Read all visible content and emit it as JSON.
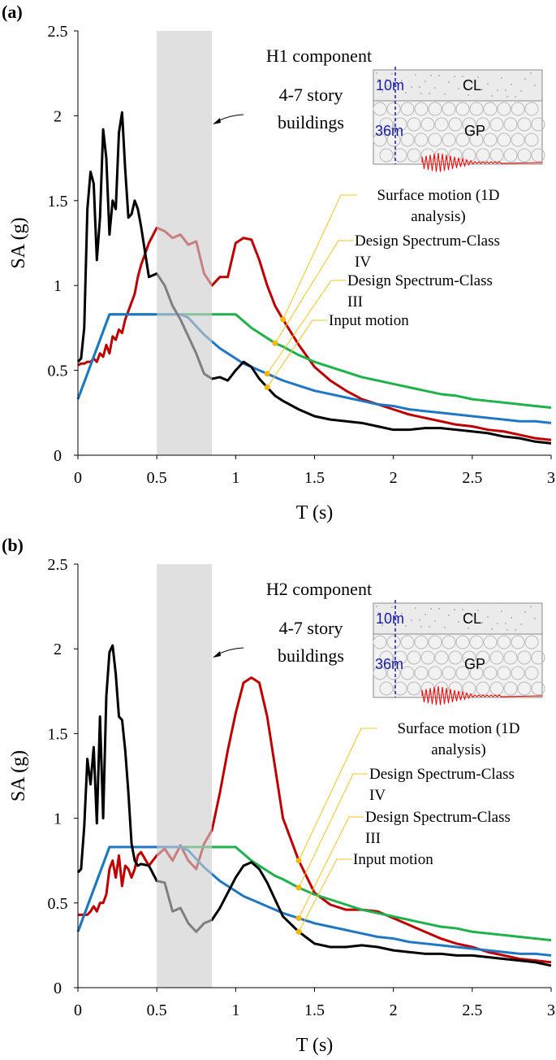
{
  "chart_data": [
    {
      "type": "line",
      "panel_label": "(a)",
      "title": "H1 component",
      "annotation": "4-7 story buildings",
      "inset_labels": [
        "10m",
        "CL",
        "36m",
        "GP"
      ],
      "xlabel": "T (s)",
      "ylabel": "SA (g)",
      "highlight": [
        0.5,
        0.85
      ],
      "xlim": [
        0,
        3
      ],
      "xticks": [
        0,
        0.5,
        1,
        1.5,
        2,
        2.5,
        3
      ],
      "ylim": [
        0,
        2.5
      ],
      "yticks": [
        0,
        0.5,
        1,
        1.5,
        2,
        2.5
      ],
      "x": [
        0,
        0.02,
        0.04,
        0.06,
        0.08,
        0.1,
        0.12,
        0.14,
        0.16,
        0.18,
        0.2,
        0.22,
        0.24,
        0.26,
        0.28,
        0.3,
        0.32,
        0.34,
        0.36,
        0.38,
        0.4,
        0.45,
        0.5,
        0.55,
        0.6,
        0.65,
        0.7,
        0.75,
        0.8,
        0.85,
        0.9,
        0.95,
        1.0,
        1.05,
        1.1,
        1.15,
        1.2,
        1.25,
        1.3,
        1.4,
        1.5,
        1.6,
        1.7,
        1.8,
        1.9,
        2.0,
        2.1,
        2.2,
        2.3,
        2.4,
        2.5,
        2.6,
        2.7,
        2.8,
        2.9,
        3.0
      ],
      "series": [
        {
          "name": "Surface motion (1D analysis)",
          "color": "#c00000",
          "values": [
            0.53,
            0.54,
            0.54,
            0.55,
            0.55,
            0.57,
            0.55,
            0.6,
            0.58,
            0.65,
            0.6,
            0.7,
            0.68,
            0.74,
            0.72,
            0.8,
            0.85,
            0.9,
            0.95,
            1.05,
            1.12,
            1.25,
            1.34,
            1.32,
            1.28,
            1.3,
            1.24,
            1.26,
            1.07,
            1.0,
            1.05,
            1.05,
            1.25,
            1.28,
            1.27,
            1.15,
            1.0,
            0.88,
            0.8,
            0.65,
            0.52,
            0.44,
            0.38,
            0.33,
            0.3,
            0.27,
            0.24,
            0.22,
            0.2,
            0.18,
            0.17,
            0.15,
            0.14,
            0.12,
            0.1,
            0.09
          ]
        },
        {
          "name": "Design Spectrum-Class IV",
          "color": "#1fb24a",
          "values": [
            0.33,
            0.38,
            0.43,
            0.48,
            0.53,
            0.58,
            0.63,
            0.68,
            0.73,
            0.78,
            0.83,
            0.83,
            0.83,
            0.83,
            0.83,
            0.83,
            0.83,
            0.83,
            0.83,
            0.83,
            0.83,
            0.83,
            0.83,
            0.83,
            0.83,
            0.83,
            0.83,
            0.83,
            0.83,
            0.83,
            0.83,
            0.83,
            0.83,
            0.79,
            0.75,
            0.72,
            0.69,
            0.66,
            0.64,
            0.59,
            0.55,
            0.52,
            0.49,
            0.46,
            0.44,
            0.42,
            0.4,
            0.38,
            0.36,
            0.35,
            0.33,
            0.32,
            0.31,
            0.3,
            0.29,
            0.28
          ]
        },
        {
          "name": "Design Spectrum-Class III",
          "color": "#1f77c4",
          "values": [
            0.33,
            0.38,
            0.43,
            0.48,
            0.53,
            0.58,
            0.63,
            0.68,
            0.73,
            0.78,
            0.83,
            0.83,
            0.83,
            0.83,
            0.83,
            0.83,
            0.83,
            0.83,
            0.83,
            0.83,
            0.83,
            0.83,
            0.83,
            0.83,
            0.83,
            0.83,
            0.81,
            0.76,
            0.71,
            0.67,
            0.63,
            0.6,
            0.57,
            0.54,
            0.52,
            0.5,
            0.48,
            0.46,
            0.44,
            0.41,
            0.38,
            0.36,
            0.34,
            0.32,
            0.3,
            0.29,
            0.27,
            0.26,
            0.25,
            0.24,
            0.23,
            0.22,
            0.21,
            0.2,
            0.2,
            0.19
          ]
        },
        {
          "name": "Input motion",
          "color": "#000000",
          "values": [
            0.55,
            0.57,
            0.75,
            1.45,
            1.67,
            1.6,
            1.15,
            1.4,
            1.92,
            1.75,
            1.3,
            1.5,
            1.45,
            1.9,
            2.02,
            1.68,
            1.4,
            1.42,
            1.5,
            1.45,
            1.35,
            1.05,
            1.07,
            1.0,
            0.88,
            0.8,
            0.7,
            0.6,
            0.48,
            0.45,
            0.46,
            0.44,
            0.5,
            0.55,
            0.52,
            0.45,
            0.4,
            0.35,
            0.32,
            0.27,
            0.23,
            0.21,
            0.2,
            0.19,
            0.17,
            0.15,
            0.15,
            0.16,
            0.16,
            0.15,
            0.14,
            0.13,
            0.11,
            0.1,
            0.08,
            0.07
          ]
        }
      ]
    },
    {
      "type": "line",
      "panel_label": "(b)",
      "title": "H2 component",
      "annotation": "4-7 story buildings",
      "inset_labels": [
        "10m",
        "CL",
        "36m",
        "GP"
      ],
      "xlabel": "T (s)",
      "ylabel": "SA (g)",
      "highlight": [
        0.5,
        0.85
      ],
      "xlim": [
        0,
        3
      ],
      "xticks": [
        0,
        0.5,
        1,
        1.5,
        2,
        2.5,
        3
      ],
      "ylim": [
        0,
        2.5
      ],
      "yticks": [
        0,
        0.5,
        1,
        1.5,
        2,
        2.5
      ],
      "x": [
        0,
        0.02,
        0.04,
        0.06,
        0.08,
        0.1,
        0.12,
        0.14,
        0.16,
        0.18,
        0.2,
        0.22,
        0.24,
        0.26,
        0.28,
        0.3,
        0.32,
        0.34,
        0.36,
        0.38,
        0.4,
        0.45,
        0.5,
        0.55,
        0.6,
        0.65,
        0.7,
        0.75,
        0.8,
        0.85,
        0.9,
        0.95,
        1.0,
        1.05,
        1.1,
        1.15,
        1.2,
        1.25,
        1.3,
        1.4,
        1.5,
        1.6,
        1.7,
        1.8,
        1.9,
        2.0,
        2.1,
        2.2,
        2.3,
        2.4,
        2.5,
        2.6,
        2.7,
        2.8,
        2.9,
        3.0
      ],
      "series": [
        {
          "name": "Surface motion (1D analysis)",
          "color": "#c00000",
          "values": [
            0.43,
            0.43,
            0.43,
            0.43,
            0.45,
            0.48,
            0.45,
            0.5,
            0.5,
            0.55,
            0.7,
            0.75,
            0.65,
            0.78,
            0.6,
            0.72,
            0.7,
            0.65,
            0.7,
            0.78,
            0.8,
            0.72,
            0.78,
            0.82,
            0.75,
            0.84,
            0.75,
            0.7,
            0.85,
            0.93,
            1.15,
            1.4,
            1.62,
            1.8,
            1.83,
            1.8,
            1.6,
            1.3,
            1.0,
            0.75,
            0.56,
            0.49,
            0.46,
            0.46,
            0.45,
            0.41,
            0.37,
            0.33,
            0.29,
            0.26,
            0.24,
            0.21,
            0.19,
            0.17,
            0.16,
            0.15
          ]
        },
        {
          "name": "Design Spectrum-Class IV",
          "color": "#1fb24a",
          "values": [
            0.33,
            0.38,
            0.43,
            0.48,
            0.53,
            0.58,
            0.63,
            0.68,
            0.73,
            0.78,
            0.83,
            0.83,
            0.83,
            0.83,
            0.83,
            0.83,
            0.83,
            0.83,
            0.83,
            0.83,
            0.83,
            0.83,
            0.83,
            0.83,
            0.83,
            0.83,
            0.83,
            0.83,
            0.83,
            0.83,
            0.83,
            0.83,
            0.83,
            0.79,
            0.75,
            0.72,
            0.69,
            0.66,
            0.64,
            0.59,
            0.55,
            0.52,
            0.49,
            0.46,
            0.44,
            0.42,
            0.4,
            0.38,
            0.36,
            0.35,
            0.33,
            0.32,
            0.31,
            0.3,
            0.29,
            0.28
          ]
        },
        {
          "name": "Design Spectrum-Class III",
          "color": "#1f77c4",
          "values": [
            0.33,
            0.38,
            0.43,
            0.48,
            0.53,
            0.58,
            0.63,
            0.68,
            0.73,
            0.78,
            0.83,
            0.83,
            0.83,
            0.83,
            0.83,
            0.83,
            0.83,
            0.83,
            0.83,
            0.83,
            0.83,
            0.83,
            0.83,
            0.83,
            0.83,
            0.83,
            0.81,
            0.76,
            0.71,
            0.67,
            0.63,
            0.6,
            0.57,
            0.54,
            0.52,
            0.5,
            0.48,
            0.46,
            0.44,
            0.41,
            0.38,
            0.36,
            0.34,
            0.32,
            0.3,
            0.29,
            0.27,
            0.26,
            0.25,
            0.24,
            0.23,
            0.22,
            0.21,
            0.2,
            0.2,
            0.19
          ]
        },
        {
          "name": "Input motion",
          "color": "#000000",
          "values": [
            0.68,
            0.7,
            0.95,
            1.35,
            1.2,
            1.42,
            0.97,
            1.6,
            1.0,
            1.72,
            1.98,
            2.02,
            1.85,
            1.6,
            1.58,
            1.4,
            1.15,
            0.85,
            0.75,
            0.72,
            0.73,
            0.72,
            0.63,
            0.62,
            0.45,
            0.47,
            0.38,
            0.33,
            0.38,
            0.4,
            0.47,
            0.56,
            0.65,
            0.72,
            0.74,
            0.7,
            0.62,
            0.52,
            0.42,
            0.33,
            0.26,
            0.24,
            0.24,
            0.25,
            0.24,
            0.22,
            0.21,
            0.2,
            0.2,
            0.19,
            0.19,
            0.18,
            0.17,
            0.16,
            0.15,
            0.13
          ]
        }
      ]
    }
  ]
}
